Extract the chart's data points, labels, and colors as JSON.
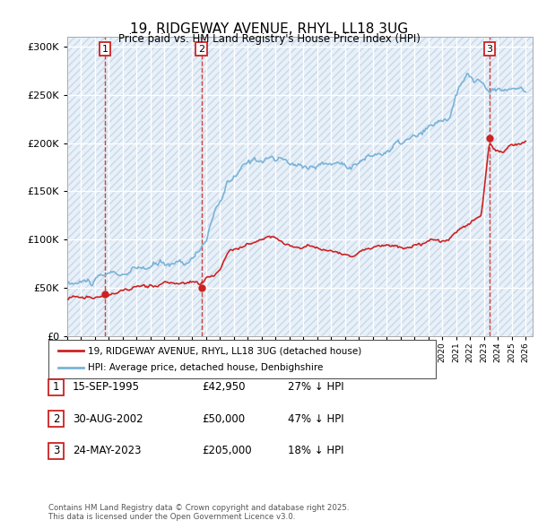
{
  "title_line1": "19, RIDGEWAY AVENUE, RHYL, LL18 3UG",
  "title_line2": "Price paid vs. HM Land Registry's House Price Index (HPI)",
  "ylim": [
    0,
    310000
  ],
  "yticks": [
    0,
    50000,
    100000,
    150000,
    200000,
    250000,
    300000
  ],
  "xlim_start": 1993.0,
  "xlim_end": 2026.5,
  "hpi_color": "#7ab4d8",
  "sale_color": "#cc2222",
  "bg_color": "#e8f0f8",
  "hatch_color": "#c8d8ea",
  "grid_color": "#ffffff",
  "sale_year_nums": [
    1995.71,
    2002.66,
    2023.39
  ],
  "sale_prices": [
    42950,
    50000,
    205000
  ],
  "sale_labels": [
    "1",
    "2",
    "3"
  ],
  "legend_sale_label": "19, RIDGEWAY AVENUE, RHYL, LL18 3UG (detached house)",
  "legend_hpi_label": "HPI: Average price, detached house, Denbighshire",
  "table_rows": [
    {
      "num": "1",
      "date": "15-SEP-1995",
      "price": "£42,950",
      "pct": "27% ↓ HPI"
    },
    {
      "num": "2",
      "date": "30-AUG-2002",
      "price": "£50,000",
      "pct": "47% ↓ HPI"
    },
    {
      "num": "3",
      "date": "24-MAY-2023",
      "price": "£205,000",
      "pct": "18% ↓ HPI"
    }
  ],
  "footnote": "Contains HM Land Registry data © Crown copyright and database right 2025.\nThis data is licensed under the Open Government Licence v3.0."
}
